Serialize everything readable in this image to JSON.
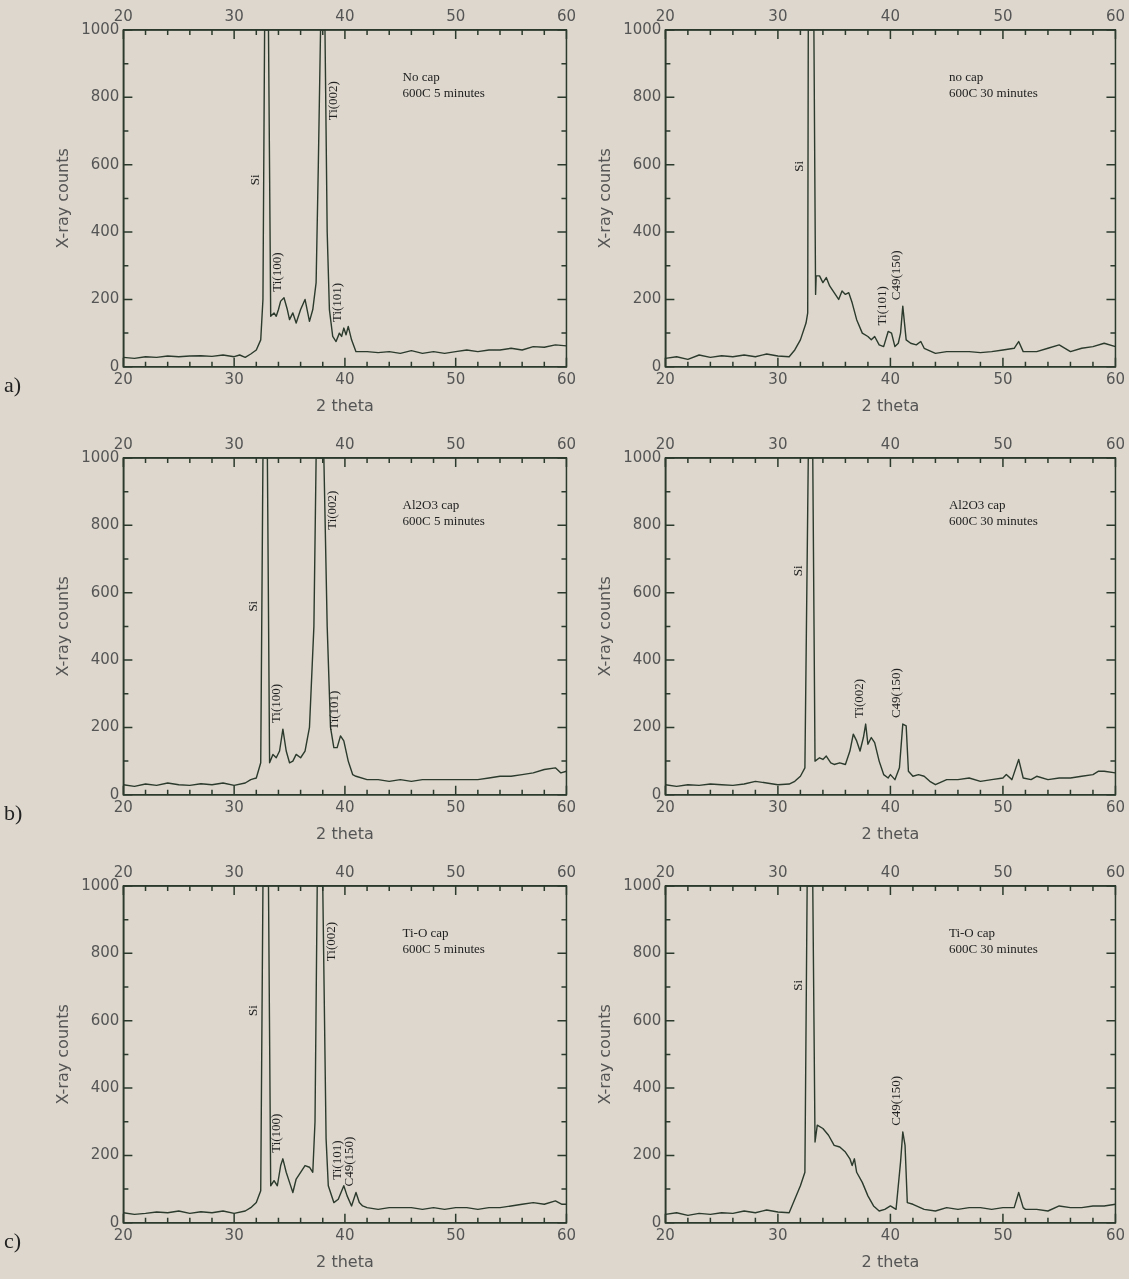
{
  "chart_data": [
    {
      "type": "line",
      "title": "a)",
      "xlabel": "2 theta",
      "ylabel": "X-ray counts",
      "color": "#2b3a2c",
      "xlim": [
        20,
        60
      ],
      "xticks": [
        20,
        {
          "value": 22,
          "label": null
        },
        {
          "value": 24,
          "label": null
        },
        {
          "value": 26,
          "label": null
        },
        {
          "value": 28,
          "label": null
        },
        30,
        {
          "value": 32,
          "label": null
        },
        {
          "value": 34,
          "label": null
        },
        {
          "value": 36,
          "label": null
        },
        {
          "value": 38,
          "label": null
        },
        40,
        {
          "value": 42,
          "label": null
        },
        {
          "value": 44,
          "label": null
        },
        {
          "value": 46,
          "label": null
        },
        {
          "value": 48,
          "label": null
        },
        50,
        {
          "value": 52,
          "label": null
        },
        {
          "value": 54,
          "label": null
        },
        {
          "value": 56,
          "label": null
        },
        {
          "value": 58,
          "label": null
        },
        60
      ],
      "x2lim": [
        20,
        60
      ],
      "x2ticks": [
        20,
        {
          "value": 22,
          "label": null
        },
        {
          "value": 24,
          "label": null
        },
        {
          "value": 26,
          "label": null
        },
        {
          "value": 28,
          "label": null
        },
        30,
        {
          "value": 32,
          "label": null
        },
        {
          "value": 34,
          "label": null
        },
        {
          "value": 36,
          "label": null
        },
        {
          "value": 38,
          "label": null
        },
        40,
        {
          "value": 42,
          "label": null
        },
        {
          "value": 44,
          "label": null
        },
        {
          "value": 46,
          "label": null
        },
        {
          "value": 48,
          "label": null
        },
        50,
        {
          "value": 52,
          "label": null
        },
        {
          "value": 54,
          "label": null
        },
        {
          "value": 56,
          "label": null
        },
        {
          "value": 58,
          "label": null
        },
        60
      ],
      "ylim": [
        0,
        1000
      ],
      "yticks": [
        0,
        {
          "value": 100,
          "label": null
        },
        200,
        {
          "value": 300,
          "label": null
        },
        400,
        {
          "value": 500,
          "label": null
        },
        600,
        {
          "value": 700,
          "label": null
        },
        800,
        {
          "value": 900,
          "label": null
        },
        1000
      ],
      "x": [
        20,
        21,
        22,
        23,
        24,
        25,
        26,
        27,
        28,
        29,
        30,
        30.5,
        31,
        31.5,
        32,
        32.4,
        32.6,
        32.75,
        32.9,
        33.1,
        33.3,
        33.6,
        33.8,
        34,
        34.2,
        34.5,
        34.8,
        35,
        35.3,
        35.6,
        36,
        36.4,
        36.8,
        37.1,
        37.4,
        37.6,
        37.8,
        38.2,
        38.4,
        38.6,
        38.9,
        39.2,
        39.5,
        39.7,
        39.9,
        40.1,
        40.3,
        40.6,
        41,
        42,
        43,
        44,
        45,
        46,
        47,
        48,
        49,
        50,
        51,
        52,
        53,
        54,
        55,
        56,
        57,
        58,
        59,
        60
      ],
      "values": [
        28,
        25,
        30,
        28,
        32,
        30,
        32,
        33,
        31,
        35,
        30,
        35,
        28,
        38,
        50,
        80,
        200,
        1000,
        1000,
        1000,
        150,
        160,
        150,
        170,
        195,
        205,
        170,
        140,
        160,
        130,
        170,
        200,
        135,
        170,
        250,
        600,
        1000,
        1000,
        400,
        170,
        90,
        75,
        100,
        90,
        115,
        95,
        120,
        80,
        45,
        45,
        42,
        45,
        40,
        48,
        40,
        45,
        40,
        45,
        50,
        45,
        50,
        50,
        55,
        50,
        60,
        58,
        65,
        62
      ],
      "annotations": [
        "No cap",
        "600C 5 minutes",
        {
          "text": "Si",
          "x": 32.67,
          "y": 555
        },
        {
          "text": "Ti(100)",
          "x": 34.5,
          "y": 205
        },
        {
          "text": "Ti(002)",
          "x": 38.27,
          "y": 790
        },
        {
          "text": "Ti(101)",
          "x": 39.9,
          "y": 115
        }
      ]
    },
    {
      "type": "line",
      "xlabel": "2 theta",
      "ylabel": "X-ray counts",
      "color": "#2b3a2c",
      "xlim": [
        20,
        60
      ],
      "xticks": [
        20,
        {
          "value": 22,
          "label": null
        },
        {
          "value": 24,
          "label": null
        },
        {
          "value": 26,
          "label": null
        },
        {
          "value": 28,
          "label": null
        },
        30,
        {
          "value": 32,
          "label": null
        },
        {
          "value": 34,
          "label": null
        },
        {
          "value": 36,
          "label": null
        },
        {
          "value": 38,
          "label": null
        },
        40,
        {
          "value": 42,
          "label": null
        },
        {
          "value": 44,
          "label": null
        },
        {
          "value": 46,
          "label": null
        },
        {
          "value": 48,
          "label": null
        },
        50,
        {
          "value": 52,
          "label": null
        },
        {
          "value": 54,
          "label": null
        },
        {
          "value": 56,
          "label": null
        },
        {
          "value": 58,
          "label": null
        },
        60
      ],
      "x2lim": [
        20,
        60
      ],
      "x2ticks": [
        20,
        {
          "value": 22,
          "label": null
        },
        {
          "value": 24,
          "label": null
        },
        {
          "value": 26,
          "label": null
        },
        {
          "value": 28,
          "label": null
        },
        30,
        {
          "value": 32,
          "label": null
        },
        {
          "value": 34,
          "label": null
        },
        {
          "value": 36,
          "label": null
        },
        {
          "value": 38,
          "label": null
        },
        40,
        {
          "value": 42,
          "label": null
        },
        {
          "value": 44,
          "label": null
        },
        {
          "value": 46,
          "label": null
        },
        {
          "value": 48,
          "label": null
        },
        50,
        {
          "value": 52,
          "label": null
        },
        {
          "value": 54,
          "label": null
        },
        {
          "value": 56,
          "label": null
        },
        {
          "value": 58,
          "label": null
        },
        60
      ],
      "ylim": [
        0,
        1000
      ],
      "yticks": [
        0,
        {
          "value": 100,
          "label": null
        },
        200,
        {
          "value": 300,
          "label": null
        },
        400,
        {
          "value": 500,
          "label": null
        },
        600,
        {
          "value": 700,
          "label": null
        },
        800,
        {
          "value": 900,
          "label": null
        },
        1000
      ],
      "x": [
        20,
        21,
        22,
        23,
        24,
        25,
        26,
        27,
        28,
        29,
        30,
        31,
        31.5,
        32,
        32.5,
        32.65,
        32.7,
        33.2,
        33.35,
        33.4,
        33.7,
        34,
        34.3,
        34.6,
        35,
        35.4,
        35.7,
        36,
        36.3,
        36.6,
        37,
        37.5,
        38,
        38.3,
        38.6,
        39,
        39.4,
        39.8,
        40.1,
        40.4,
        40.7,
        40.9,
        41.1,
        41.4,
        41.8,
        42.3,
        42.7,
        43,
        44,
        45,
        46,
        47,
        48,
        49,
        50,
        51,
        51.4,
        51.8,
        52,
        53,
        54,
        55,
        56,
        57,
        58,
        59,
        60
      ],
      "values": [
        25,
        30,
        22,
        35,
        28,
        33,
        30,
        35,
        30,
        38,
        32,
        30,
        50,
        80,
        130,
        160,
        1000,
        1000,
        215,
        270,
        270,
        250,
        265,
        240,
        220,
        200,
        225,
        215,
        220,
        190,
        140,
        100,
        90,
        80,
        90,
        65,
        60,
        105,
        100,
        60,
        70,
        100,
        180,
        80,
        70,
        65,
        75,
        55,
        40,
        45,
        45,
        45,
        42,
        45,
        50,
        55,
        75,
        45,
        45,
        45,
        55,
        65,
        45,
        55,
        60,
        70,
        60
      ],
      "annotations": [
        "no cap",
        "600C 30 minutes",
        {
          "text": "Si",
          "x": 32.68,
          "y": 595
        },
        {
          "text": "Ti(101)",
          "x": 39.8,
          "y": 105
        },
        {
          "text": "C49(150)",
          "x": 41.1,
          "y": 180
        }
      ]
    },
    {
      "type": "line",
      "title": "b)",
      "xlabel": "2 theta",
      "ylabel": "X-ray counts",
      "color": "#2b3a2c",
      "xlim": [
        20,
        60
      ],
      "xticks": [
        20,
        {
          "value": 22,
          "label": null
        },
        {
          "value": 24,
          "label": null
        },
        {
          "value": 26,
          "label": null
        },
        {
          "value": 28,
          "label": null
        },
        30,
        {
          "value": 32,
          "label": null
        },
        {
          "value": 34,
          "label": null
        },
        {
          "value": 36,
          "label": null
        },
        {
          "value": 38,
          "label": null
        },
        40,
        {
          "value": 42,
          "label": null
        },
        {
          "value": 44,
          "label": null
        },
        {
          "value": 46,
          "label": null
        },
        {
          "value": 48,
          "label": null
        },
        50,
        {
          "value": 52,
          "label": null
        },
        {
          "value": 54,
          "label": null
        },
        {
          "value": 56,
          "label": null
        },
        {
          "value": 58,
          "label": null
        },
        60
      ],
      "x2lim": [
        20,
        60
      ],
      "x2ticks": [
        20,
        {
          "value": 22,
          "label": null
        },
        {
          "value": 24,
          "label": null
        },
        {
          "value": 26,
          "label": null
        },
        {
          "value": 28,
          "label": null
        },
        30,
        {
          "value": 32,
          "label": null
        },
        {
          "value": 34,
          "label": null
        },
        {
          "value": 36,
          "label": null
        },
        {
          "value": 38,
          "label": null
        },
        40,
        {
          "value": 42,
          "label": null
        },
        {
          "value": 44,
          "label": null
        },
        {
          "value": 46,
          "label": null
        },
        {
          "value": 48,
          "label": null
        },
        50,
        {
          "value": 52,
          "label": null
        },
        {
          "value": 54,
          "label": null
        },
        {
          "value": 56,
          "label": null
        },
        {
          "value": 58,
          "label": null
        },
        60
      ],
      "ylim": [
        0,
        1000
      ],
      "yticks": [
        0,
        {
          "value": 100,
          "label": null
        },
        200,
        {
          "value": 300,
          "label": null
        },
        400,
        {
          "value": 500,
          "label": null
        },
        600,
        {
          "value": 700,
          "label": null
        },
        800,
        {
          "value": 900,
          "label": null
        },
        1000
      ],
      "x": [
        20,
        21,
        22,
        23,
        24,
        25,
        26,
        27,
        28,
        29,
        30,
        31,
        31.5,
        32,
        32.4,
        32.6,
        33,
        33.2,
        33.5,
        33.8,
        34.1,
        34.4,
        34.7,
        35,
        35.3,
        35.6,
        36,
        36.4,
        36.8,
        37.2,
        37.4,
        38.1,
        38.4,
        38.7,
        39,
        39.3,
        39.6,
        39.9,
        40.3,
        40.7,
        41,
        42,
        43,
        44,
        45,
        46,
        47,
        48,
        49,
        50,
        51,
        52,
        53,
        54,
        55,
        56,
        57,
        58,
        59,
        59.5,
        60
      ],
      "values": [
        30,
        25,
        32,
        28,
        35,
        30,
        28,
        33,
        30,
        35,
        28,
        35,
        45,
        50,
        95,
        1000,
        1000,
        95,
        120,
        110,
        130,
        195,
        130,
        95,
        100,
        120,
        110,
        130,
        200,
        500,
        1000,
        1000,
        500,
        200,
        140,
        140,
        175,
        160,
        100,
        60,
        55,
        45,
        45,
        40,
        45,
        40,
        45,
        45,
        45,
        45,
        45,
        45,
        50,
        55,
        55,
        60,
        65,
        75,
        80,
        65,
        70
      ],
      "annotations": [
        "Al2O3 cap",
        "600C 5 minutes",
        {
          "text": "Si",
          "x": 32.5,
          "y": 560
        },
        {
          "text": "Ti(100)",
          "x": 34.4,
          "y": 195
        },
        {
          "text": "Ti(002)",
          "x": 38.19,
          "y": 845
        },
        {
          "text": "Ti(101)",
          "x": 39.6,
          "y": 175
        }
      ]
    },
    {
      "type": "line",
      "xlabel": "2 theta",
      "ylabel": "X-ray counts",
      "color": "#2b3a2c",
      "xlim": [
        20,
        60
      ],
      "xticks": [
        20,
        {
          "value": 22,
          "label": null
        },
        {
          "value": 24,
          "label": null
        },
        {
          "value": 26,
          "label": null
        },
        {
          "value": 28,
          "label": null
        },
        30,
        {
          "value": 32,
          "label": null
        },
        {
          "value": 34,
          "label": null
        },
        {
          "value": 36,
          "label": null
        },
        {
          "value": 38,
          "label": null
        },
        40,
        {
          "value": 42,
          "label": null
        },
        {
          "value": 44,
          "label": null
        },
        {
          "value": 46,
          "label": null
        },
        {
          "value": 48,
          "label": null
        },
        50,
        {
          "value": 52,
          "label": null
        },
        {
          "value": 54,
          "label": null
        },
        {
          "value": 56,
          "label": null
        },
        {
          "value": 58,
          "label": null
        },
        60
      ],
      "x2lim": [
        20,
        60
      ],
      "x2ticks": [
        20,
        {
          "value": 22,
          "label": null
        },
        {
          "value": 24,
          "label": null
        },
        {
          "value": 26,
          "label": null
        },
        {
          "value": 28,
          "label": null
        },
        30,
        {
          "value": 32,
          "label": null
        },
        {
          "value": 34,
          "label": null
        },
        {
          "value": 36,
          "label": null
        },
        {
          "value": 38,
          "label": null
        },
        40,
        {
          "value": 42,
          "label": null
        },
        {
          "value": 44,
          "label": null
        },
        {
          "value": 46,
          "label": null
        },
        {
          "value": 48,
          "label": null
        },
        50,
        {
          "value": 52,
          "label": null
        },
        {
          "value": 54,
          "label": null
        },
        {
          "value": 56,
          "label": null
        },
        {
          "value": 58,
          "label": null
        },
        60
      ],
      "ylim": [
        0,
        1000
      ],
      "yticks": [
        0,
        {
          "value": 100,
          "label": null
        },
        200,
        {
          "value": 300,
          "label": null
        },
        400,
        {
          "value": 500,
          "label": null
        },
        600,
        {
          "value": 700,
          "label": null
        },
        800,
        {
          "value": 900,
          "label": null
        },
        1000
      ],
      "x": [
        20,
        21,
        22,
        23,
        24,
        25,
        26,
        27,
        28,
        29,
        30,
        31,
        31.5,
        32,
        32.4,
        32.7,
        33.1,
        33.3,
        33.7,
        34,
        34.3,
        34.7,
        35,
        35.5,
        36,
        36.4,
        36.7,
        37,
        37.3,
        37.6,
        37.8,
        38,
        38.3,
        38.6,
        39,
        39.4,
        39.8,
        40,
        40.4,
        40.8,
        41.1,
        41.4,
        41.6,
        42,
        42.5,
        43,
        43.5,
        44,
        45,
        46,
        47,
        48,
        49,
        50,
        50.3,
        50.8,
        51.4,
        51.8,
        52.5,
        53,
        54,
        55,
        56,
        57,
        58,
        58.5,
        59,
        60
      ],
      "values": [
        30,
        25,
        30,
        28,
        32,
        30,
        28,
        32,
        40,
        35,
        30,
        32,
        40,
        55,
        80,
        1000,
        1000,
        100,
        110,
        105,
        115,
        95,
        90,
        95,
        90,
        130,
        180,
        160,
        130,
        170,
        210,
        150,
        170,
        155,
        100,
        60,
        50,
        60,
        45,
        80,
        210,
        205,
        70,
        55,
        60,
        55,
        40,
        30,
        45,
        45,
        50,
        40,
        45,
        50,
        60,
        45,
        105,
        50,
        45,
        55,
        45,
        50,
        50,
        55,
        60,
        70,
        70,
        65
      ],
      "annotations": [
        "Al2O3 cap",
        "600C 30 minutes",
        {
          "text": "Si",
          "x": 32.59,
          "y": 665
        },
        {
          "text": "Ti(002)",
          "x": 37.8,
          "y": 210
        },
        {
          "text": "C49(150)",
          "x": 41.1,
          "y": 210
        }
      ]
    },
    {
      "type": "line",
      "title": "c)",
      "xlabel": "2 theta",
      "ylabel": "X-ray counts",
      "color": "#2b3a2c",
      "xlim": [
        20,
        60
      ],
      "xticks": [
        20,
        {
          "value": 22,
          "label": null
        },
        {
          "value": 24,
          "label": null
        },
        {
          "value": 26,
          "label": null
        },
        {
          "value": 28,
          "label": null
        },
        30,
        {
          "value": 32,
          "label": null
        },
        {
          "value": 34,
          "label": null
        },
        {
          "value": 36,
          "label": null
        },
        {
          "value": 38,
          "label": null
        },
        40,
        {
          "value": 42,
          "label": null
        },
        {
          "value": 44,
          "label": null
        },
        {
          "value": 46,
          "label": null
        },
        {
          "value": 48,
          "label": null
        },
        50,
        {
          "value": 52,
          "label": null
        },
        {
          "value": 54,
          "label": null
        },
        {
          "value": 56,
          "label": null
        },
        {
          "value": 58,
          "label": null
        },
        60
      ],
      "x2lim": [
        20,
        60
      ],
      "x2ticks": [
        20,
        {
          "value": 22,
          "label": null
        },
        {
          "value": 24,
          "label": null
        },
        {
          "value": 26,
          "label": null
        },
        {
          "value": 28,
          "label": null
        },
        30,
        {
          "value": 32,
          "label": null
        },
        {
          "value": 34,
          "label": null
        },
        {
          "value": 36,
          "label": null
        },
        {
          "value": 38,
          "label": null
        },
        40,
        {
          "value": 42,
          "label": null
        },
        {
          "value": 44,
          "label": null
        },
        {
          "value": 46,
          "label": null
        },
        {
          "value": 48,
          "label": null
        },
        50,
        {
          "value": 52,
          "label": null
        },
        {
          "value": 54,
          "label": null
        },
        {
          "value": 56,
          "label": null
        },
        {
          "value": 58,
          "label": null
        },
        60
      ],
      "ylim": [
        0,
        1000
      ],
      "yticks": [
        0,
        {
          "value": 100,
          "label": null
        },
        200,
        {
          "value": 300,
          "label": null
        },
        400,
        {
          "value": 500,
          "label": null
        },
        600,
        {
          "value": 700,
          "label": null
        },
        800,
        {
          "value": 900,
          "label": null
        },
        1000
      ],
      "x": [
        20,
        21,
        22,
        23,
        24,
        25,
        26,
        27,
        28,
        29,
        30,
        31,
        31.5,
        32,
        32.4,
        32.6,
        33.1,
        33.3,
        33.6,
        33.9,
        34.2,
        34.4,
        34.7,
        35,
        35.3,
        35.6,
        36,
        36.4,
        36.8,
        37.1,
        37.3,
        37.5,
        38,
        38.3,
        38.5,
        39,
        39.4,
        39.9,
        40.2,
        40.6,
        41,
        41.3,
        41.6,
        42,
        43,
        44,
        45,
        46,
        47,
        48,
        49,
        50,
        51,
        52,
        53,
        54,
        55,
        56,
        57,
        58,
        59,
        59.6,
        60
      ],
      "values": [
        30,
        25,
        28,
        32,
        30,
        35,
        28,
        33,
        30,
        35,
        28,
        35,
        45,
        60,
        95,
        1000,
        1000,
        110,
        125,
        110,
        170,
        190,
        150,
        120,
        90,
        130,
        150,
        170,
        165,
        150,
        300,
        1000,
        1000,
        250,
        110,
        60,
        70,
        110,
        80,
        50,
        90,
        60,
        50,
        45,
        40,
        45,
        45,
        45,
        40,
        45,
        40,
        45,
        45,
        40,
        45,
        45,
        50,
        55,
        60,
        55,
        65,
        55,
        55
      ],
      "annotations": [
        "Ti-O cap",
        "600C 5 minutes",
        {
          "text": "Si",
          "x": 32.52,
          "y": 630
        },
        {
          "text": "Ti(100)",
          "x": 34.4,
          "y": 190
        },
        {
          "text": "Ti(002)",
          "x": 38.07,
          "y": 835
        },
        {
          "text": "Ti(101)",
          "x": 39.9,
          "y": 110
        },
        {
          "text": "C49(150)",
          "x": 41,
          "y": 90
        }
      ]
    },
    {
      "type": "line",
      "xlabel": "2 theta",
      "ylabel": "X-ray counts",
      "color": "#2b3a2c",
      "xlim": [
        20,
        60
      ],
      "xticks": [
        20,
        {
          "value": 22,
          "label": null
        },
        {
          "value": 24,
          "label": null
        },
        {
          "value": 26,
          "label": null
        },
        {
          "value": 28,
          "label": null
        },
        30,
        {
          "value": 32,
          "label": null
        },
        {
          "value": 34,
          "label": null
        },
        {
          "value": 36,
          "label": null
        },
        {
          "value": 38,
          "label": null
        },
        40,
        {
          "value": 42,
          "label": null
        },
        {
          "value": 44,
          "label": null
        },
        {
          "value": 46,
          "label": null
        },
        {
          "value": 48,
          "label": null
        },
        50,
        {
          "value": 52,
          "label": null
        },
        {
          "value": 54,
          "label": null
        },
        {
          "value": 56,
          "label": null
        },
        {
          "value": 58,
          "label": null
        },
        60
      ],
      "x2lim": [
        20,
        60
      ],
      "x2ticks": [
        20,
        {
          "value": 22,
          "label": null
        },
        {
          "value": 24,
          "label": null
        },
        {
          "value": 26,
          "label": null
        },
        {
          "value": 28,
          "label": null
        },
        30,
        {
          "value": 32,
          "label": null
        },
        {
          "value": 34,
          "label": null
        },
        {
          "value": 36,
          "label": null
        },
        {
          "value": 38,
          "label": null
        },
        40,
        {
          "value": 42,
          "label": null
        },
        {
          "value": 44,
          "label": null
        },
        {
          "value": 46,
          "label": null
        },
        {
          "value": 48,
          "label": null
        },
        50,
        {
          "value": 52,
          "label": null
        },
        {
          "value": 54,
          "label": null
        },
        {
          "value": 56,
          "label": null
        },
        {
          "value": 58,
          "label": null
        },
        60
      ],
      "ylim": [
        0,
        1000
      ],
      "yticks": [
        0,
        {
          "value": 100,
          "label": null
        },
        200,
        {
          "value": 300,
          "label": null
        },
        400,
        {
          "value": 500,
          "label": null
        },
        600,
        {
          "value": 700,
          "label": null
        },
        800,
        {
          "value": 900,
          "label": null
        },
        1000
      ],
      "x": [
        20,
        21,
        22,
        23,
        24,
        25,
        26,
        27,
        28,
        29,
        30,
        31,
        31.5,
        32,
        32.4,
        32.6,
        33.1,
        33.3,
        33.5,
        34,
        34.5,
        35,
        35.5,
        36,
        36.4,
        36.6,
        36.8,
        37,
        37.5,
        38,
        38.5,
        39,
        39.5,
        40,
        40.5,
        40.9,
        41.1,
        41.3,
        41.5,
        42,
        43,
        44,
        45,
        46,
        47,
        48,
        49,
        50,
        51,
        51.4,
        51.8,
        52,
        53,
        54,
        55,
        56,
        57,
        58,
        59,
        60
      ],
      "values": [
        25,
        30,
        22,
        28,
        25,
        30,
        28,
        35,
        30,
        38,
        32,
        30,
        70,
        110,
        150,
        1000,
        1000,
        240,
        290,
        280,
        260,
        230,
        225,
        210,
        190,
        170,
        190,
        150,
        120,
        80,
        50,
        35,
        40,
        50,
        40,
        180,
        270,
        230,
        60,
        55,
        40,
        35,
        45,
        40,
        45,
        45,
        40,
        45,
        45,
        90,
        45,
        40,
        40,
        35,
        50,
        45,
        45,
        50,
        50,
        55
      ],
      "annotations": [
        "Ti-O cap",
        "600C 30 minutes",
        {
          "text": "Si",
          "x": 32.53,
          "y": 705
        },
        {
          "text": "C49(150)",
          "x": 41.1,
          "y": 270
        }
      ]
    }
  ]
}
